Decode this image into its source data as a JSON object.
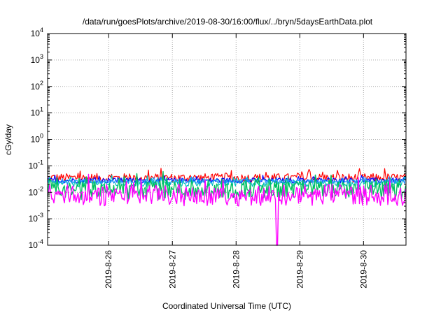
{
  "chart_data": {
    "type": "line",
    "title": "/data/run/goesPlots/archive/2019-08-30/16:00/flux/../bryn/5daysEarthData.plot",
    "xlabel": "Coordinated Universal Time (UTC)",
    "ylabel": "cGy/day",
    "yscale": "log",
    "ylim": [
      0.0001,
      10000
    ],
    "xlim": [
      "2019-08-25T01:00",
      "2019-08-30T16:00"
    ],
    "grid": true,
    "y_ticks": [
      {
        "value": 0.0001,
        "base": "10",
        "exp": "-4"
      },
      {
        "value": 0.001,
        "base": "10",
        "exp": "-3"
      },
      {
        "value": 0.01,
        "base": "10",
        "exp": "-2"
      },
      {
        "value": 0.1,
        "base": "10",
        "exp": "-1"
      },
      {
        "value": 1,
        "base": "10",
        "exp": "0"
      },
      {
        "value": 10,
        "base": "10",
        "exp": "1"
      },
      {
        "value": 100,
        "base": "10",
        "exp": "2"
      },
      {
        "value": 1000,
        "base": "10",
        "exp": "3"
      },
      {
        "value": 10000,
        "base": "10",
        "exp": "4"
      }
    ],
    "x_ticks": [
      {
        "value": "2019-08-26T00:00",
        "label": "2019-8-26"
      },
      {
        "value": "2019-08-27T00:00",
        "label": "2019-8-27"
      },
      {
        "value": "2019-08-28T00:00",
        "label": "2019-8-28"
      },
      {
        "value": "2019-08-29T00:00",
        "label": "2019-8-29"
      },
      {
        "value": "2019-08-30T00:00",
        "label": "2019-8-30"
      }
    ],
    "series": [
      {
        "color": "#ff0000",
        "level": 0.035,
        "spread": 0.17
      },
      {
        "color": "#0000ff",
        "level": 0.028,
        "spread": 0.1
      },
      {
        "color": "#00bfbf",
        "level": 0.022,
        "spread": 0.14
      },
      {
        "color": "#1e90ff",
        "level": 0.026,
        "spread": 0.08
      },
      {
        "color": "#00c060",
        "level": 0.01,
        "spread": 0.3
      },
      {
        "color": "#ff00ff",
        "level": 0.006,
        "spread": 0.3
      }
    ],
    "annotations": [
      {
        "type": "dip",
        "series_color": "#ff00ff",
        "x": "2019-08-28T15:20",
        "y": 0.0001
      }
    ]
  }
}
